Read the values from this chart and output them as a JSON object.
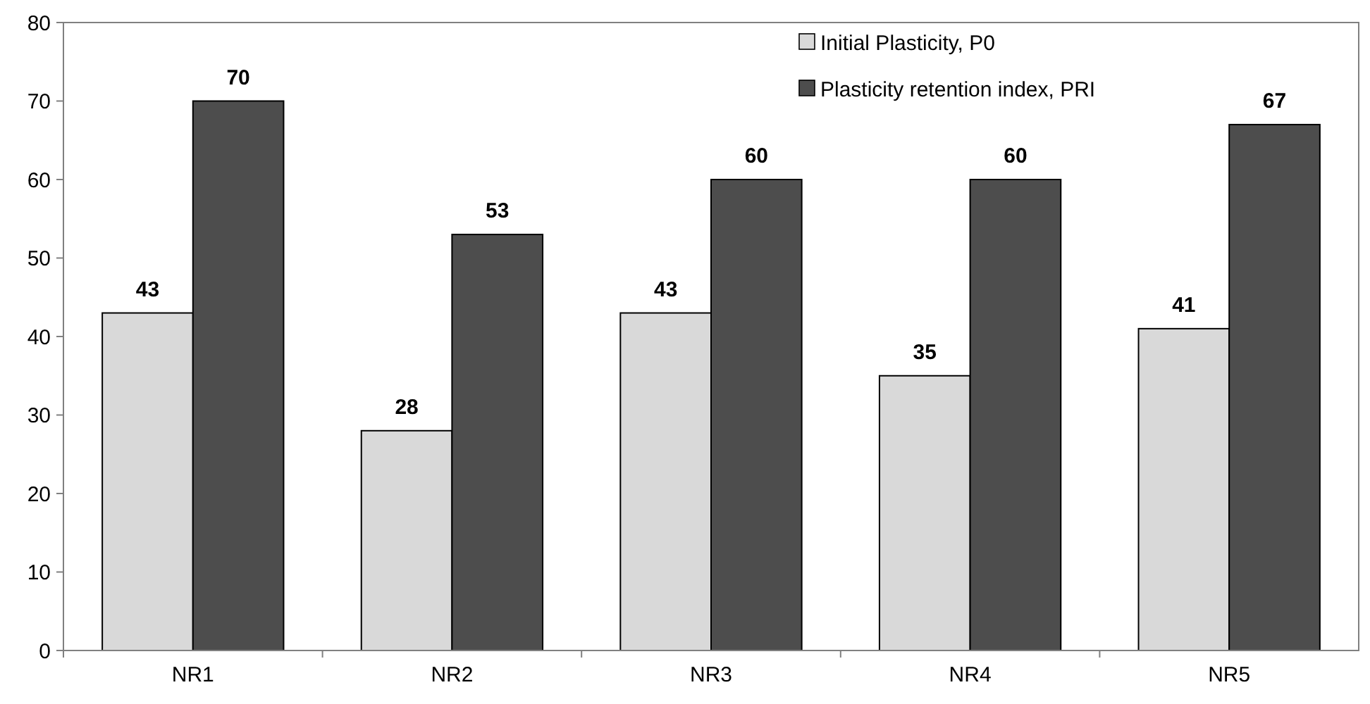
{
  "chart_data": {
    "type": "bar",
    "categories": [
      "NR1",
      "NR2",
      "NR3",
      "NR4",
      "NR5"
    ],
    "series": [
      {
        "name": "Initial Plasticity, P0",
        "color": "#d9d9d9",
        "values": [
          43,
          28,
          43,
          35,
          41
        ]
      },
      {
        "name": "Plasticity retention index, PRI",
        "color": "#4d4d4d",
        "values": [
          70,
          53,
          60,
          60,
          67
        ]
      }
    ],
    "ylim": [
      0,
      80
    ],
    "yticks": [
      0,
      10,
      20,
      30,
      40,
      50,
      60,
      70,
      80
    ],
    "grid": false,
    "legend": "top right",
    "data_labels": true
  }
}
